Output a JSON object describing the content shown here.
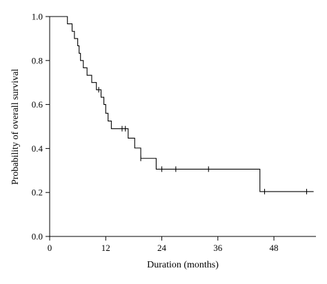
{
  "chart_data": {
    "type": "line",
    "subtype": "kaplan-meier-step",
    "xlabel": "Duration (months)",
    "ylabel": "Probability of overall survival",
    "xlim": [
      0,
      57
    ],
    "ylim": [
      0,
      1
    ],
    "xticks": [
      0,
      12,
      24,
      36,
      48
    ],
    "xtick_labels": [
      "0",
      "12",
      "24",
      "36",
      "48"
    ],
    "yticks": [
      0,
      0.2,
      0.4,
      0.6,
      0.8,
      1.0
    ],
    "ytick_labels": [
      "0.0",
      "0.2",
      "0.4",
      "0.6",
      "0.8",
      "1.0"
    ],
    "grid": false,
    "series": [
      {
        "step_points": [
          [
            0,
            1.0
          ],
          [
            3.8,
            1.0
          ],
          [
            3.8,
            0.967
          ],
          [
            4.8,
            0.967
          ],
          [
            4.8,
            0.933
          ],
          [
            5.3,
            0.933
          ],
          [
            5.3,
            0.9
          ],
          [
            6.0,
            0.9
          ],
          [
            6.0,
            0.867
          ],
          [
            6.3,
            0.867
          ],
          [
            6.3,
            0.833
          ],
          [
            6.6,
            0.833
          ],
          [
            6.6,
            0.8
          ],
          [
            7.2,
            0.8
          ],
          [
            7.2,
            0.767
          ],
          [
            8.0,
            0.767
          ],
          [
            8.0,
            0.733
          ],
          [
            9.0,
            0.733
          ],
          [
            9.0,
            0.7
          ],
          [
            10.0,
            0.7
          ],
          [
            10.0,
            0.667
          ],
          [
            11.0,
            0.667
          ],
          [
            11.0,
            0.633
          ],
          [
            11.6,
            0.633
          ],
          [
            11.6,
            0.6
          ],
          [
            12.0,
            0.6
          ],
          [
            12.0,
            0.56
          ],
          [
            12.5,
            0.56
          ],
          [
            12.5,
            0.525
          ],
          [
            13.2,
            0.525
          ],
          [
            13.2,
            0.49
          ],
          [
            16.8,
            0.49
          ],
          [
            16.8,
            0.447
          ],
          [
            18.2,
            0.447
          ],
          [
            18.2,
            0.402
          ],
          [
            19.5,
            0.402
          ],
          [
            19.5,
            0.355
          ],
          [
            22.8,
            0.355
          ],
          [
            22.8,
            0.306
          ],
          [
            45.0,
            0.306
          ],
          [
            45.0,
            0.204
          ],
          [
            56.5,
            0.204
          ]
        ],
        "censored": [
          [
            10.5,
            0.667
          ],
          [
            15.5,
            0.49
          ],
          [
            16.2,
            0.49
          ],
          [
            19.5,
            0.355
          ],
          [
            24.0,
            0.306
          ],
          [
            27.0,
            0.306
          ],
          [
            34.0,
            0.306
          ],
          [
            46.0,
            0.204
          ],
          [
            55.0,
            0.204
          ]
        ]
      }
    ]
  }
}
